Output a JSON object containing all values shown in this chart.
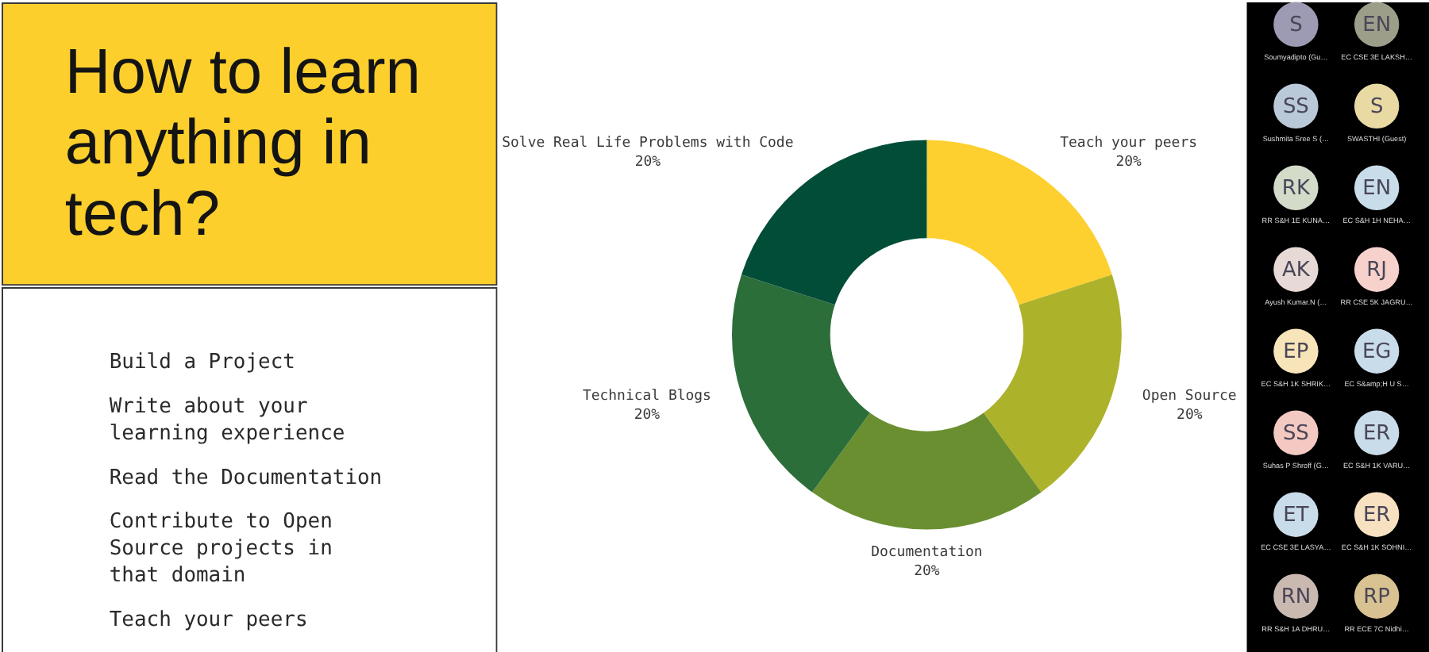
{
  "chart_data": {
    "type": "donut",
    "title": "How to learn anything in tech?",
    "categories": [
      "Teach your peers",
      "Open Source",
      "Documentation",
      "Technical Blogs",
      "Solve Real Life Problems with Code"
    ],
    "values": [
      20,
      20,
      20,
      20,
      20
    ],
    "colors": [
      "#fdd02f",
      "#adb22b",
      "#698f31",
      "#2c6e3a",
      "#024d38"
    ],
    "value_labels": [
      "20%",
      "20%",
      "20%",
      "20%",
      "20%"
    ],
    "annotations": [
      "Build a Project",
      "Write about your learning experience",
      "Read the Documentation",
      "Contribute to Open Source projects in that domain",
      "Teach your peers",
      "S",
      "EN",
      "Soumyadipto (Gu…",
      "EC CSE 3E LAKSH…",
      "SS",
      "S",
      "Sushmita Sree S (…",
      "SWASTHI (Guest)",
      "RK",
      "EN",
      "RR S&H 1E KUNA…",
      "EC S&H 1H NEHA…",
      "AK",
      "RJ",
      "Ayush Kumar.N (…",
      "RR CSE 5K JAGRU…",
      "EP",
      "EG",
      "EC S&H 1K SHRIK…",
      "EC S&amp;H U S…",
      "SS",
      "ER",
      "Suhas P Shroff (G…",
      "EC S&H 1K VARU…",
      "ET",
      "ER",
      "EC CSE 3E LASYA…",
      "EC S&H 1K SOHNI…",
      "RN",
      "RP",
      "RR S&H 1A DHRU…",
      "RR ECE 7C Nidhi…"
    ]
  }
}
